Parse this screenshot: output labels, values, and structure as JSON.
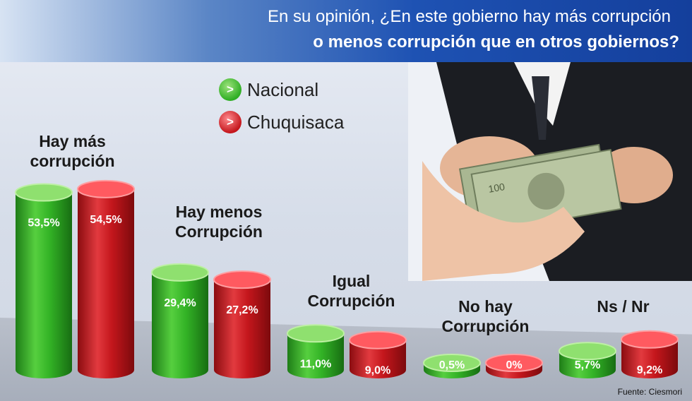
{
  "title_line1": "En su opinión, ¿En este gobierno hay más corrupción",
  "title_line2": "o menos corrupción que en otros gobiernos?",
  "source": "Fuente: Ciesmori",
  "legend": {
    "icon_glyph": ">",
    "items": [
      {
        "label": "Nacional",
        "color": "#2fae24"
      },
      {
        "label": "Chuquisaca",
        "color": "#c4161c"
      }
    ]
  },
  "photo": {
    "icon": "money-hands-photo"
  },
  "chart_data": {
    "type": "bar",
    "categories": [
      "Hay más\ncorrupción",
      "Hay menos\nCorrupción",
      "Igual\nCorrupción",
      "No hay\nCorrupción",
      "Ns / Nr"
    ],
    "series": [
      {
        "name": "Nacional",
        "color": "#2fae24",
        "values": [
          53.5,
          29.4,
          11.0,
          0.5,
          5.7
        ],
        "labels": [
          "53,5%",
          "29,4%",
          "11,0%",
          "0,5%",
          "5,7%"
        ]
      },
      {
        "name": "Chuquisaca",
        "color": "#c4161c",
        "values": [
          54.5,
          27.2,
          9.0,
          0,
          9.2
        ],
        "labels": [
          "54,5%",
          "27,2%",
          "9,0%",
          "0%",
          "9,2%"
        ]
      }
    ]
  }
}
